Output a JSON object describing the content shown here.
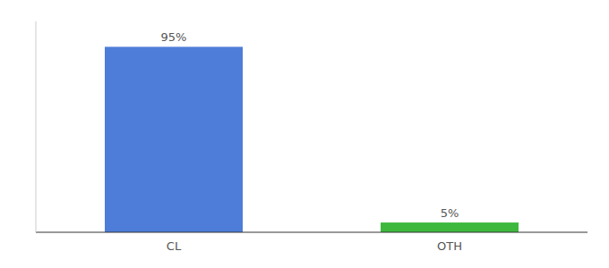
{
  "chart_data": {
    "type": "bar",
    "categories": [
      "CL",
      "OTH"
    ],
    "values": [
      95,
      5
    ],
    "value_labels": [
      "95%",
      "5%"
    ],
    "colors": [
      "#4d7dd9",
      "#3db83d"
    ],
    "ylim": [
      0,
      108
    ],
    "data_labels": true,
    "tick_labels": "x"
  }
}
